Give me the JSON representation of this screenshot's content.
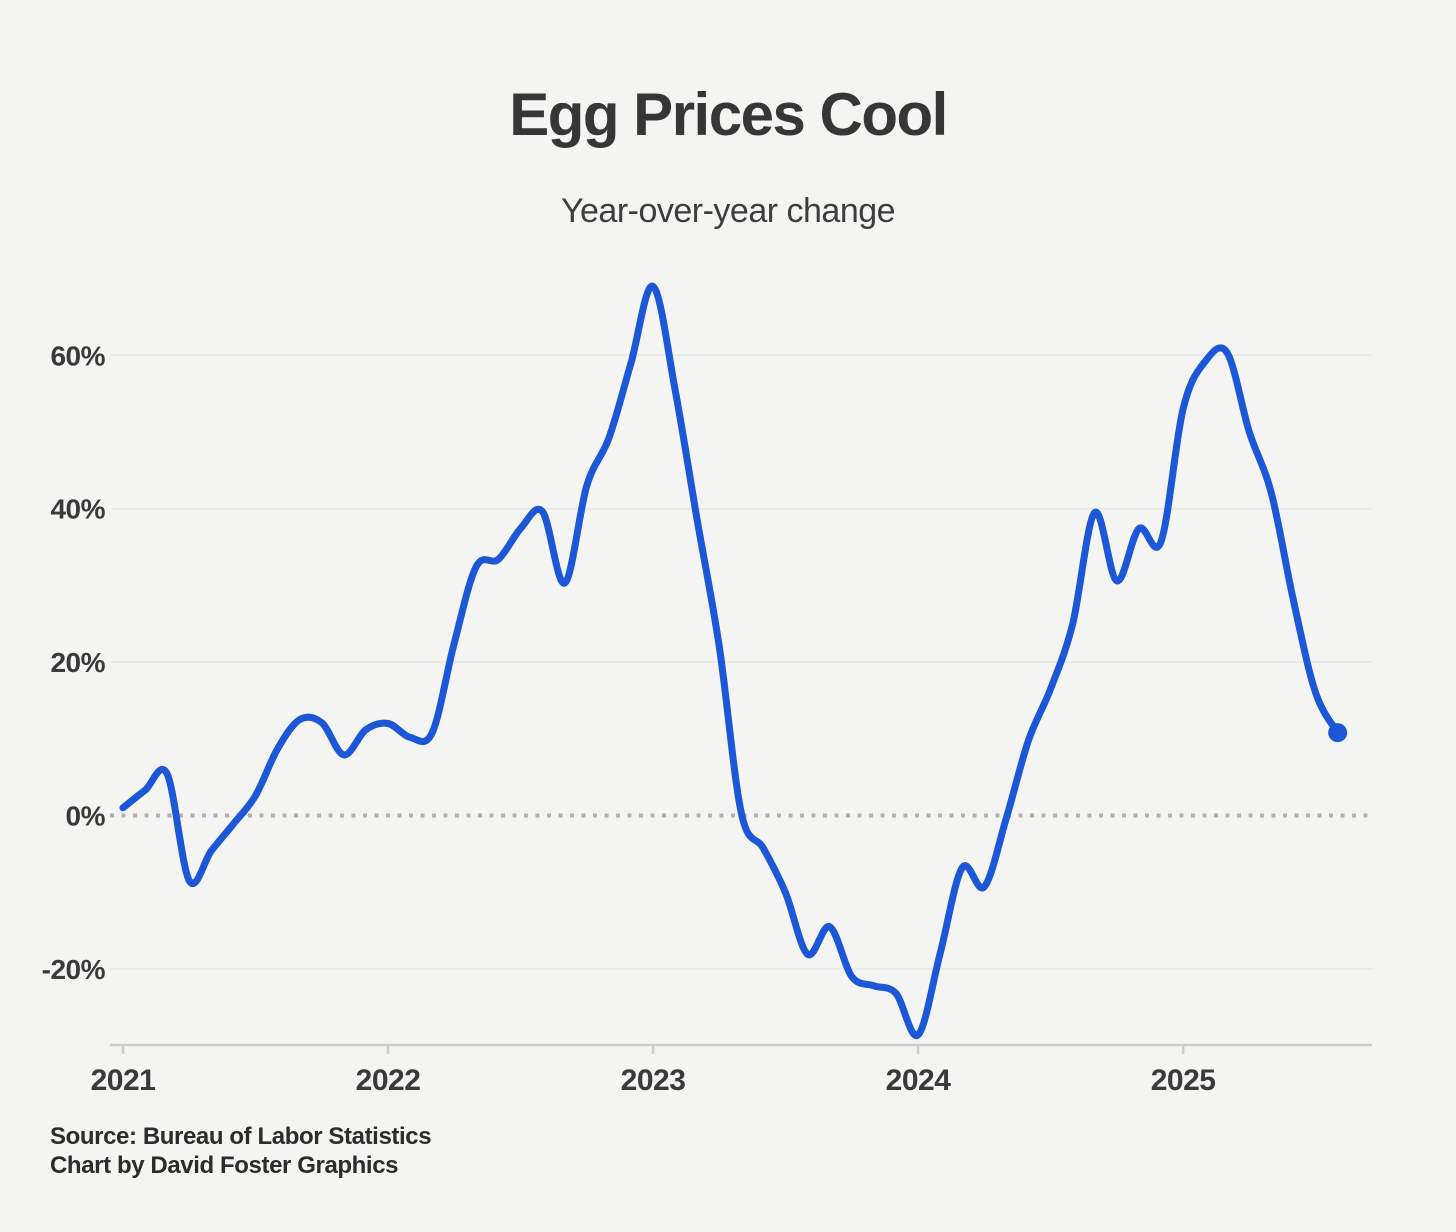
{
  "header": {
    "title": "Egg Prices Cool",
    "subtitle": "Year-over-year change"
  },
  "footer": {
    "source": "Source: Bureau of Labor Statistics",
    "credit": "Chart by David Foster Graphics"
  },
  "colors": {
    "background": "#f4f4f2",
    "line": "#1b57d7",
    "grid": "#e9e9e8",
    "zero_line": "#b0b0b0",
    "axis": "#cccccc",
    "tick_label": "#3a3a3a"
  },
  "chart_data": {
    "type": "line",
    "title": "Egg Prices Cool",
    "subtitle": "Year-over-year change",
    "x_start": "2021-01",
    "x_freq": "monthly",
    "x_tick_labels": [
      "2021",
      "2022",
      "2023",
      "2024",
      "2025"
    ],
    "x_tick_month_indices": [
      0,
      12,
      24,
      36,
      48
    ],
    "y_ticks": [
      60,
      40,
      20,
      0,
      -20
    ],
    "y_tick_labels": [
      "60%",
      "40%",
      "20%",
      "0%",
      "-20%"
    ],
    "ylim": [
      -32,
      72
    ],
    "grid": true,
    "zero_line_style": "dotted",
    "legend_position": "none",
    "end_point_marker": true,
    "series": [
      {
        "name": "Egg prices, year-over-year % change",
        "color": "#1b57d7",
        "values": [
          1.0,
          3.3,
          5.4,
          -8.5,
          -4.6,
          -1.1,
          2.6,
          8.7,
          12.5,
          12.1,
          7.9,
          11.2,
          12.0,
          10.2,
          10.8,
          22.5,
          32.5,
          33.4,
          37.4,
          39.6,
          30.3,
          43.0,
          49.2,
          59.0,
          69.0,
          55.5,
          38.5,
          22.0,
          0.3,
          -4.3,
          -10.1,
          -18.1,
          -14.5,
          -21.0,
          -22.2,
          -23.2,
          -28.6,
          -18.0,
          -6.8,
          -9.3,
          -0.3,
          9.8,
          16.5,
          25.0,
          39.5,
          30.6,
          37.4,
          35.7,
          53.0,
          59.2,
          60.3,
          50.0,
          42.0,
          28.0,
          16.0,
          10.8
        ]
      }
    ],
    "last_value": 10.8
  }
}
